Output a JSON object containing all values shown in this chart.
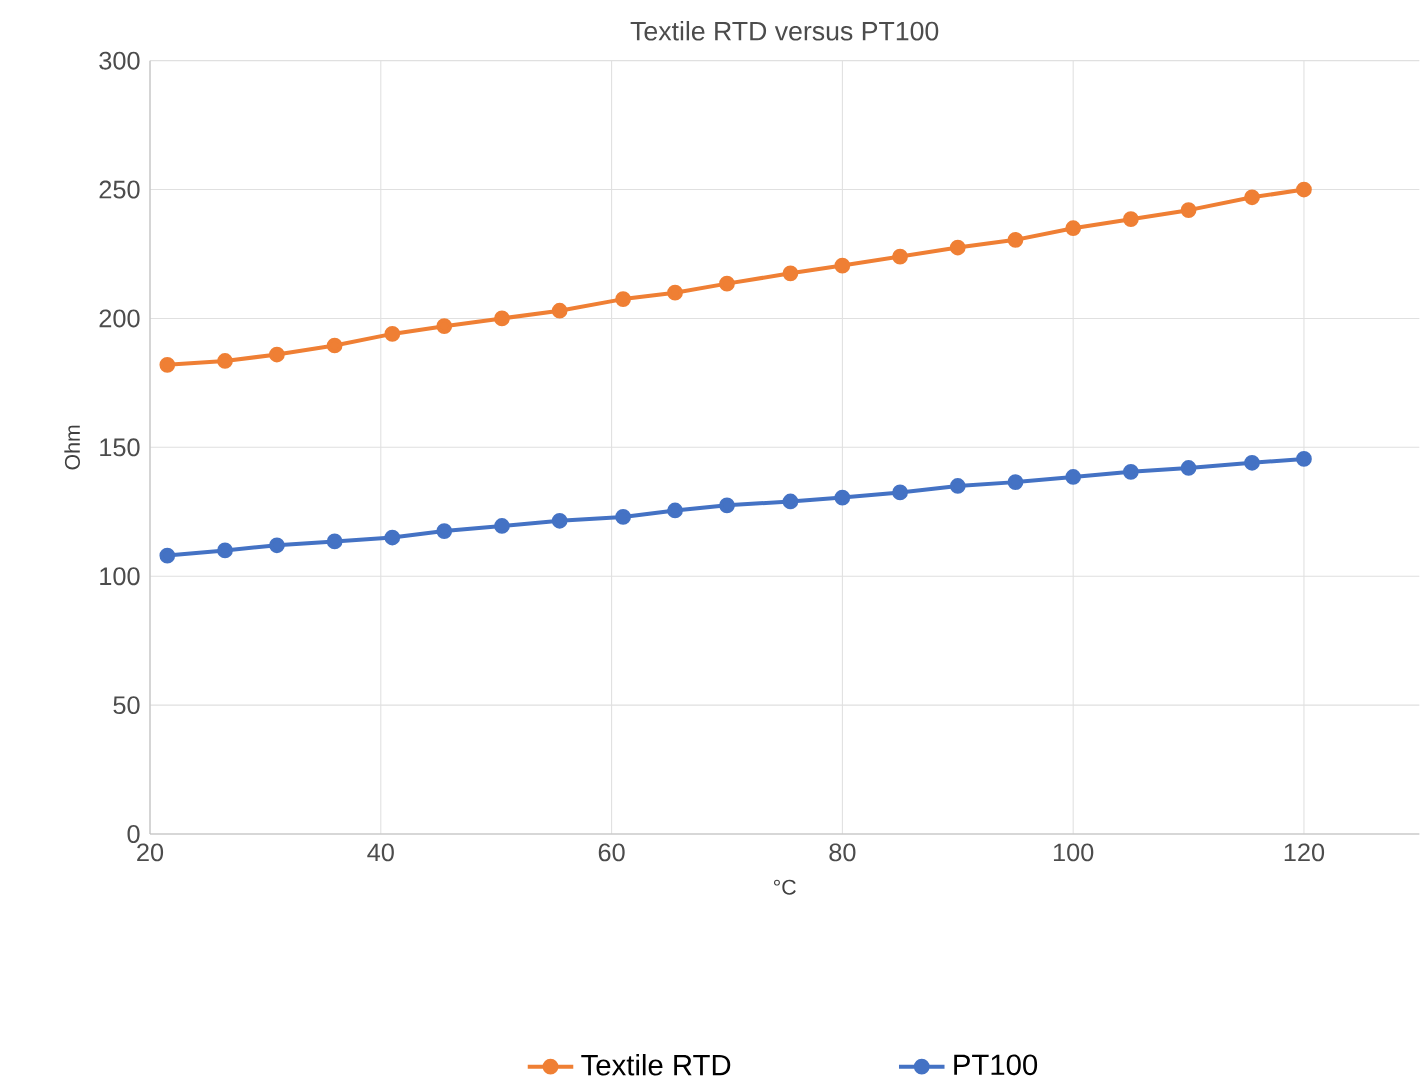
{
  "chart_data": {
    "type": "line",
    "title": "Textile RTD versus PT100",
    "xlabel": "°C",
    "ylabel": "Ohm",
    "x": [
      21.5,
      26.5,
      31,
      36,
      41,
      45.5,
      50.5,
      55.5,
      61,
      65.5,
      70,
      75.5,
      80,
      85,
      90,
      95,
      100,
      105,
      110,
      115.5,
      120
    ],
    "series": [
      {
        "name": "Textile RTD",
        "color": "#ef7f34",
        "values": [
          182,
          183.5,
          186,
          189.5,
          194,
          197,
          200,
          203,
          207.5,
          210,
          213.5,
          217.5,
          220.5,
          224,
          227.5,
          230.5,
          235,
          238.5,
          242,
          247,
          250
        ]
      },
      {
        "name": "PT100",
        "color": "#4472c4",
        "values": [
          108,
          110,
          112,
          113.5,
          115,
          117.5,
          119.5,
          121.5,
          123,
          125.5,
          127.5,
          129,
          130.5,
          132.5,
          135,
          136.5,
          138.5,
          140.5,
          142,
          144,
          145.5
        ]
      }
    ],
    "xlim": [
      20,
      130
    ],
    "ylim": [
      0,
      300
    ],
    "xticks": [
      20,
      40,
      60,
      80,
      100,
      120
    ],
    "yticks": [
      0,
      50,
      100,
      150,
      200,
      250,
      300
    ],
    "grid": true,
    "legend": "bottom",
    "marker": "circle",
    "line_style": "solid"
  }
}
